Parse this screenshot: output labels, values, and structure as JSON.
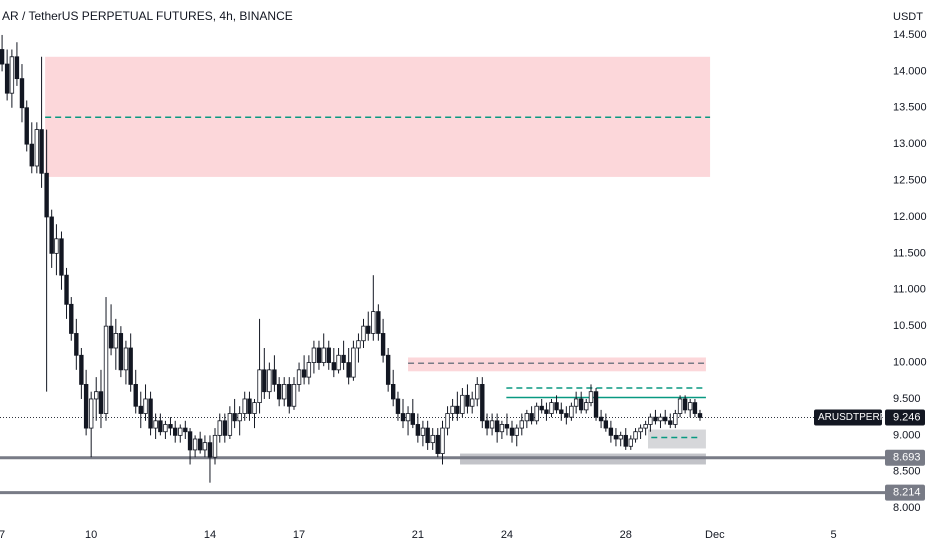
{
  "chart_data": {
    "type": "candlestick",
    "title": "AR / TetherUS PERPETUAL FUTURES, 4h, BINANCE",
    "y_unit": "USDT",
    "up_color": "#ffffff",
    "down_color": "#131722",
    "outline_color": "#131722",
    "x": [
      7,
      7.17,
      7.33,
      7.5,
      7.67,
      7.83,
      8,
      8.17,
      8.33,
      8.5,
      8.67,
      8.83,
      9,
      9.17,
      9.33,
      9.5,
      9.67,
      9.83,
      10,
      10.17,
      10.33,
      10.5,
      10.67,
      10.83,
      11,
      11.17,
      11.33,
      11.5,
      11.67,
      11.83,
      12,
      12.17,
      12.33,
      12.5,
      12.67,
      12.83,
      13,
      13.17,
      13.33,
      13.5,
      13.67,
      13.83,
      14,
      14.17,
      14.33,
      14.5,
      14.67,
      14.83,
      15,
      15.17,
      15.33,
      15.5,
      15.67,
      15.83,
      16,
      16.17,
      16.33,
      16.5,
      16.67,
      16.83,
      17,
      17.17,
      17.33,
      17.5,
      17.67,
      17.83,
      18,
      18.17,
      18.33,
      18.5,
      18.67,
      18.83,
      19,
      19.17,
      19.33,
      19.5,
      19.67,
      19.83,
      20,
      20.17,
      20.33,
      20.5,
      20.67,
      20.83,
      21,
      21.17,
      21.33,
      21.5,
      21.67,
      21.83,
      22,
      22.17,
      22.33,
      22.5,
      22.67,
      22.83,
      23,
      23.17,
      23.33,
      23.5,
      23.67,
      23.83,
      24,
      24.17,
      24.33,
      24.5,
      24.67,
      24.83,
      25,
      25.17,
      25.33,
      25.5,
      25.67,
      25.83,
      26,
      26.17,
      26.33,
      26.5,
      26.67,
      26.83,
      27,
      27.17,
      27.33,
      27.5,
      27.67,
      27.83,
      28,
      28.17,
      28.33,
      28.5,
      28.67,
      28.83,
      29,
      29.17,
      29.33,
      29.5,
      29.67,
      29.83,
      30,
      30.17,
      30.33,
      30.5
    ],
    "ohlc": [
      [
        14.3,
        14.5,
        14.0,
        14.1
      ],
      [
        14.1,
        14.3,
        13.6,
        13.7
      ],
      [
        13.7,
        14.3,
        13.5,
        14.2
      ],
      [
        14.2,
        14.4,
        13.8,
        13.9
      ],
      [
        13.9,
        14.1,
        13.3,
        13.5
      ],
      [
        13.5,
        13.6,
        12.9,
        13.0
      ],
      [
        13.0,
        13.3,
        12.6,
        12.7
      ],
      [
        12.7,
        13.3,
        12.6,
        13.2
      ],
      [
        13.2,
        14.2,
        12.4,
        12.6
      ],
      [
        12.6,
        13.2,
        9.6,
        12.0
      ],
      [
        12.0,
        12.1,
        11.3,
        11.5
      ],
      [
        11.5,
        11.9,
        11.2,
        11.7
      ],
      [
        11.7,
        11.8,
        11.0,
        11.2
      ],
      [
        11.2,
        11.3,
        10.6,
        10.8
      ],
      [
        10.8,
        10.9,
        10.3,
        10.4
      ],
      [
        10.4,
        10.6,
        9.9,
        10.1
      ],
      [
        10.1,
        10.2,
        9.5,
        9.7
      ],
      [
        9.7,
        9.9,
        9.0,
        9.1
      ],
      [
        9.1,
        9.6,
        8.7,
        9.5
      ],
      [
        9.5,
        9.8,
        9.2,
        9.6
      ],
      [
        9.6,
        9.9,
        9.1,
        9.3
      ],
      [
        9.3,
        10.9,
        9.2,
        10.5
      ],
      [
        10.5,
        10.8,
        10.1,
        10.2
      ],
      [
        10.2,
        10.6,
        9.9,
        10.4
      ],
      [
        10.4,
        10.5,
        9.8,
        9.9
      ],
      [
        9.9,
        10.3,
        9.7,
        10.2
      ],
      [
        10.2,
        10.4,
        9.6,
        9.7
      ],
      [
        9.7,
        9.9,
        9.3,
        9.4
      ],
      [
        9.4,
        9.6,
        9.1,
        9.3
      ],
      [
        9.3,
        9.7,
        9.2,
        9.5
      ],
      [
        9.5,
        9.6,
        9.0,
        9.1
      ],
      [
        9.1,
        9.3,
        8.95,
        9.2
      ],
      [
        9.2,
        9.3,
        9.0,
        9.05
      ],
      [
        9.05,
        9.2,
        8.95,
        9.15
      ],
      [
        9.15,
        9.25,
        9.0,
        9.1
      ],
      [
        9.1,
        9.2,
        8.9,
        9.0
      ],
      [
        9.0,
        9.15,
        8.9,
        9.1
      ],
      [
        9.1,
        9.2,
        8.95,
        9.05
      ],
      [
        9.05,
        9.1,
        8.6,
        8.8
      ],
      [
        8.8,
        9.0,
        8.7,
        8.95
      ],
      [
        8.95,
        9.05,
        8.75,
        8.8
      ],
      [
        8.8,
        9.0,
        8.7,
        8.9
      ],
      [
        8.9,
        9.0,
        8.35,
        8.7
      ],
      [
        8.7,
        9.1,
        8.6,
        9.0
      ],
      [
        9.0,
        9.3,
        8.9,
        9.2
      ],
      [
        9.2,
        9.3,
        8.9,
        9.0
      ],
      [
        9.0,
        9.4,
        8.95,
        9.3
      ],
      [
        9.3,
        9.5,
        9.1,
        9.2
      ],
      [
        9.2,
        9.4,
        9.0,
        9.3
      ],
      [
        9.3,
        9.6,
        9.2,
        9.5
      ],
      [
        9.5,
        9.6,
        9.2,
        9.3
      ],
      [
        9.3,
        9.5,
        9.1,
        9.45
      ],
      [
        9.45,
        10.6,
        9.3,
        9.9
      ],
      [
        9.9,
        10.2,
        9.5,
        9.6
      ],
      [
        9.6,
        10.0,
        9.5,
        9.9
      ],
      [
        9.9,
        10.1,
        9.6,
        9.7
      ],
      [
        9.7,
        9.8,
        9.4,
        9.5
      ],
      [
        9.5,
        9.8,
        9.4,
        9.7
      ],
      [
        9.7,
        9.8,
        9.3,
        9.4
      ],
      [
        9.4,
        9.8,
        9.35,
        9.7
      ],
      [
        9.7,
        10.0,
        9.6,
        9.9
      ],
      [
        9.9,
        10.1,
        9.7,
        9.8
      ],
      [
        9.8,
        10.1,
        9.7,
        10.0
      ],
      [
        10.0,
        10.3,
        9.85,
        10.2
      ],
      [
        10.2,
        10.3,
        9.9,
        10.0
      ],
      [
        10.0,
        10.4,
        9.95,
        10.2
      ],
      [
        10.2,
        10.3,
        9.9,
        10.0
      ],
      [
        10.0,
        10.2,
        9.8,
        9.9
      ],
      [
        9.9,
        10.2,
        9.85,
        10.1
      ],
      [
        10.1,
        10.3,
        9.9,
        10.0
      ],
      [
        10.0,
        10.2,
        9.7,
        9.8
      ],
      [
        9.8,
        10.3,
        9.75,
        10.2
      ],
      [
        10.2,
        10.4,
        10.0,
        10.3
      ],
      [
        10.3,
        10.6,
        10.2,
        10.5
      ],
      [
        10.5,
        10.7,
        10.3,
        10.4
      ],
      [
        10.4,
        11.2,
        10.3,
        10.7
      ],
      [
        10.7,
        10.8,
        10.3,
        10.4
      ],
      [
        10.4,
        10.6,
        10.0,
        10.1
      ],
      [
        10.1,
        10.2,
        9.6,
        9.7
      ],
      [
        9.7,
        9.9,
        9.4,
        9.5
      ],
      [
        9.5,
        9.6,
        9.2,
        9.3
      ],
      [
        9.3,
        9.5,
        9.1,
        9.2
      ],
      [
        9.2,
        9.4,
        9.0,
        9.3
      ],
      [
        9.3,
        9.5,
        9.1,
        9.15
      ],
      [
        9.15,
        9.3,
        8.9,
        9.0
      ],
      [
        9.0,
        9.2,
        8.85,
        9.1
      ],
      [
        9.1,
        9.2,
        8.8,
        8.9
      ],
      [
        8.9,
        9.1,
        8.8,
        9.0
      ],
      [
        9.0,
        9.1,
        8.7,
        8.75
      ],
      [
        8.75,
        9.2,
        8.6,
        9.1
      ],
      [
        9.1,
        9.4,
        9.0,
        9.3
      ],
      [
        9.3,
        9.5,
        9.2,
        9.4
      ],
      [
        9.4,
        9.6,
        9.2,
        9.3
      ],
      [
        9.3,
        9.65,
        9.25,
        9.55
      ],
      [
        9.55,
        9.7,
        9.3,
        9.4
      ],
      [
        9.4,
        9.6,
        9.3,
        9.5
      ],
      [
        9.5,
        9.8,
        9.4,
        9.7
      ],
      [
        9.7,
        9.8,
        9.1,
        9.2
      ],
      [
        9.2,
        9.3,
        9.0,
        9.1
      ],
      [
        9.1,
        9.3,
        9.0,
        9.2
      ],
      [
        9.2,
        9.3,
        8.9,
        9.05
      ],
      [
        9.05,
        9.2,
        8.95,
        9.15
      ],
      [
        9.15,
        9.3,
        9.0,
        9.1
      ],
      [
        9.1,
        9.2,
        8.9,
        9.0
      ],
      [
        9.0,
        9.15,
        8.85,
        9.1
      ],
      [
        9.1,
        9.3,
        9.0,
        9.2
      ],
      [
        9.2,
        9.35,
        9.1,
        9.3
      ],
      [
        9.3,
        9.4,
        9.15,
        9.2
      ],
      [
        9.2,
        9.45,
        9.15,
        9.4
      ],
      [
        9.4,
        9.5,
        9.3,
        9.35
      ],
      [
        9.35,
        9.45,
        9.2,
        9.3
      ],
      [
        9.3,
        9.5,
        9.25,
        9.45
      ],
      [
        9.45,
        9.55,
        9.3,
        9.35
      ],
      [
        9.35,
        9.45,
        9.2,
        9.3
      ],
      [
        9.3,
        9.4,
        9.15,
        9.25
      ],
      [
        9.25,
        9.45,
        9.2,
        9.4
      ],
      [
        9.4,
        9.6,
        9.3,
        9.5
      ],
      [
        9.5,
        9.6,
        9.3,
        9.35
      ],
      [
        9.35,
        9.5,
        9.3,
        9.45
      ],
      [
        9.45,
        9.7,
        9.4,
        9.6
      ],
      [
        9.6,
        9.65,
        9.2,
        9.25
      ],
      [
        9.25,
        9.35,
        9.1,
        9.2
      ],
      [
        9.2,
        9.3,
        9.05,
        9.1
      ],
      [
        9.1,
        9.2,
        8.9,
        9.0
      ],
      [
        9.0,
        9.1,
        8.85,
        8.95
      ],
      [
        8.95,
        9.05,
        8.85,
        9.0
      ],
      [
        9.0,
        9.1,
        8.8,
        8.85
      ],
      [
        8.85,
        9.0,
        8.8,
        8.95
      ],
      [
        8.95,
        9.1,
        8.9,
        9.05
      ],
      [
        9.05,
        9.15,
        8.95,
        9.1
      ],
      [
        9.1,
        9.2,
        9.0,
        9.15
      ],
      [
        9.15,
        9.3,
        9.05,
        9.25
      ],
      [
        9.25,
        9.35,
        9.15,
        9.2
      ],
      [
        9.2,
        9.3,
        9.1,
        9.25
      ],
      [
        9.25,
        9.35,
        9.15,
        9.2
      ],
      [
        9.2,
        9.3,
        9.1,
        9.15
      ],
      [
        9.15,
        9.35,
        9.1,
        9.3
      ],
      [
        9.3,
        9.55,
        9.25,
        9.5
      ],
      [
        9.5,
        9.55,
        9.3,
        9.35
      ],
      [
        9.35,
        9.5,
        9.25,
        9.45
      ],
      [
        9.45,
        9.5,
        9.25,
        9.3
      ],
      [
        9.3,
        9.35,
        9.2,
        9.246
      ]
    ],
    "xlim": [
      6.93,
      36.73
    ],
    "xticks": [
      7,
      10,
      14,
      17,
      21,
      24,
      28,
      {
        "value": 31,
        "label": "Dec"
      },
      {
        "value": 35,
        "label": "5"
      }
    ],
    "ylim": [
      7.81,
      14.98
    ],
    "yticks": [
      {
        "value": 8,
        "label": "8.000"
      },
      {
        "value": 8.5,
        "label": "8.500"
      },
      {
        "value": 9,
        "label": "9.000"
      },
      {
        "value": 9.5,
        "label": "9.500"
      },
      {
        "value": 10,
        "label": "10.000"
      },
      {
        "value": 10.5,
        "label": "10.500"
      },
      {
        "value": 11,
        "label": "11.000"
      },
      {
        "value": 11.5,
        "label": "11.500"
      },
      {
        "value": 12,
        "label": "12.000"
      },
      {
        "value": 12.5,
        "label": "12.500"
      },
      {
        "value": 13,
        "label": "13.000"
      },
      {
        "value": 13.5,
        "label": "13.500"
      },
      {
        "value": 14,
        "label": "14.000"
      },
      {
        "value": 14.5,
        "label": "14.500"
      }
    ],
    "zones": [
      {
        "x": [
          8.45,
          30.84
        ],
        "y": [
          12.55,
          14.2
        ],
        "color": "rgba(242,54,69,0.2)"
      },
      {
        "x": [
          20.67,
          30.7
        ],
        "y": [
          9.88,
          10.07
        ],
        "color": "rgba(242,54,69,0.2)"
      },
      {
        "x": [
          22.42,
          30.7
        ],
        "y": [
          8.6,
          8.75
        ],
        "color": "rgba(120,123,134,0.45)"
      },
      {
        "x": [
          28.75,
          30.7
        ],
        "y": [
          8.82,
          9.08
        ],
        "color": "rgba(120,123,134,0.3)"
      }
    ],
    "lines": [
      {
        "x": [
          8.45,
          30.84
        ],
        "value": 13.37,
        "style": "dashed",
        "color": "#089981"
      },
      {
        "x": [
          20.67,
          30.7
        ],
        "value": 9.99,
        "style": "dashed",
        "color": "#787b86"
      },
      {
        "x": [
          23.98,
          30.7
        ],
        "value": 9.65,
        "style": "dashed",
        "color": "#089981"
      },
      {
        "x": [
          23.98,
          30.7
        ],
        "value": 9.52,
        "style": "solid",
        "color": "#089981"
      },
      {
        "x": [
          28.86,
          30.47
        ],
        "value": 8.97,
        "style": "dashed",
        "color": "#089981"
      }
    ],
    "levels": [
      {
        "value": 8.693,
        "color": "#787b86"
      },
      {
        "value": 8.214,
        "color": "#787b86"
      }
    ],
    "last_price": {
      "name": "ARUSDTPERP",
      "value": 9.246,
      "color": "#131722"
    }
  }
}
